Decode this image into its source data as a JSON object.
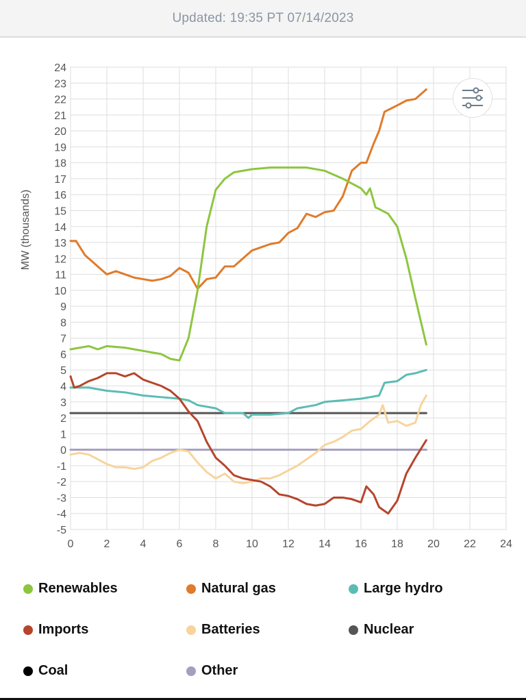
{
  "header": {
    "updated": "Updated: 19:35 PT 07/14/2023"
  },
  "filter_button": {
    "icon": "sliders-icon"
  },
  "chart_data": {
    "type": "line",
    "title": "",
    "xlabel": "",
    "ylabel": "MW (thousands)",
    "xlim": [
      0,
      24
    ],
    "ylim": [
      -5,
      24
    ],
    "x_ticks": [
      "0",
      "2",
      "4",
      "6",
      "8",
      "10",
      "12",
      "14",
      "16",
      "18",
      "20",
      "22",
      "24"
    ],
    "y_ticks": [
      "-5",
      "-4",
      "-3",
      "-2",
      "-1",
      "0",
      "1",
      "2",
      "3",
      "4",
      "5",
      "6",
      "7",
      "8",
      "9",
      "10",
      "11",
      "12",
      "13",
      "14",
      "15",
      "16",
      "17",
      "18",
      "19",
      "20",
      "21",
      "22",
      "23",
      "24"
    ],
    "grid": true,
    "legend_position": "bottom",
    "series": [
      {
        "name": "Renewables",
        "color": "#8cc63f",
        "points": [
          [
            0,
            6.3
          ],
          [
            1,
            6.5
          ],
          [
            1.5,
            6.3
          ],
          [
            2,
            6.5
          ],
          [
            3,
            6.4
          ],
          [
            4,
            6.2
          ],
          [
            5,
            6.0
          ],
          [
            5.5,
            5.7
          ],
          [
            6,
            5.6
          ],
          [
            6.5,
            7
          ],
          [
            7,
            10
          ],
          [
            7.5,
            14
          ],
          [
            8,
            16.3
          ],
          [
            8.5,
            17
          ],
          [
            9,
            17.4
          ],
          [
            10,
            17.6
          ],
          [
            11,
            17.7
          ],
          [
            12,
            17.7
          ],
          [
            13,
            17.7
          ],
          [
            14,
            17.5
          ],
          [
            15,
            17.0
          ],
          [
            15.5,
            16.7
          ],
          [
            16,
            16.4
          ],
          [
            16.3,
            16.0
          ],
          [
            16.5,
            16.4
          ],
          [
            16.8,
            15.2
          ],
          [
            17,
            15.1
          ],
          [
            17.5,
            14.8
          ],
          [
            18,
            14.0
          ],
          [
            18.5,
            12.0
          ],
          [
            19,
            9.5
          ],
          [
            19.6,
            6.6
          ]
        ]
      },
      {
        "name": "Natural gas",
        "color": "#e07b2a",
        "points": [
          [
            0,
            13.1
          ],
          [
            0.3,
            13.1
          ],
          [
            0.8,
            12.2
          ],
          [
            1.5,
            11.5
          ],
          [
            2,
            11.0
          ],
          [
            2.5,
            11.2
          ],
          [
            3,
            11.0
          ],
          [
            3.5,
            10.8
          ],
          [
            4,
            10.7
          ],
          [
            4.5,
            10.6
          ],
          [
            5,
            10.7
          ],
          [
            5.5,
            10.9
          ],
          [
            6,
            11.4
          ],
          [
            6.5,
            11.1
          ],
          [
            7,
            10.1
          ],
          [
            7.5,
            10.7
          ],
          [
            8,
            10.8
          ],
          [
            8.5,
            11.5
          ],
          [
            9,
            11.5
          ],
          [
            9.5,
            12.0
          ],
          [
            10,
            12.5
          ],
          [
            11,
            12.9
          ],
          [
            11.5,
            13.0
          ],
          [
            12,
            13.6
          ],
          [
            12.5,
            13.9
          ],
          [
            13,
            14.8
          ],
          [
            13.5,
            14.6
          ],
          [
            14,
            14.9
          ],
          [
            14.5,
            15.0
          ],
          [
            15,
            15.9
          ],
          [
            15.5,
            17.5
          ],
          [
            16,
            18.0
          ],
          [
            16.3,
            18.0
          ],
          [
            16.7,
            19.2
          ],
          [
            17,
            20
          ],
          [
            17.3,
            21.2
          ],
          [
            18,
            21.6
          ],
          [
            18.5,
            21.9
          ],
          [
            19,
            22.0
          ],
          [
            19.6,
            22.6
          ]
        ]
      },
      {
        "name": "Large hydro",
        "color": "#5bbcb4",
        "points": [
          [
            0,
            3.9
          ],
          [
            1,
            3.9
          ],
          [
            2,
            3.7
          ],
          [
            3,
            3.6
          ],
          [
            4,
            3.4
          ],
          [
            5,
            3.3
          ],
          [
            6,
            3.2
          ],
          [
            6.5,
            3.1
          ],
          [
            7,
            2.8
          ],
          [
            8,
            2.6
          ],
          [
            8.5,
            2.3
          ],
          [
            9,
            2.3
          ],
          [
            9.5,
            2.3
          ],
          [
            9.8,
            2.0
          ],
          [
            10,
            2.2
          ],
          [
            11,
            2.2
          ],
          [
            12,
            2.3
          ],
          [
            12.5,
            2.6
          ],
          [
            13.5,
            2.8
          ],
          [
            14,
            3.0
          ],
          [
            15,
            3.1
          ],
          [
            16,
            3.2
          ],
          [
            16.5,
            3.3
          ],
          [
            17,
            3.4
          ],
          [
            17.3,
            4.2
          ],
          [
            18,
            4.3
          ],
          [
            18.5,
            4.7
          ],
          [
            19,
            4.8
          ],
          [
            19.6,
            5.0
          ]
        ]
      },
      {
        "name": "Imports",
        "color": "#b5452c",
        "points": [
          [
            0,
            4.6
          ],
          [
            0.2,
            3.9
          ],
          [
            0.5,
            4.0
          ],
          [
            1,
            4.3
          ],
          [
            1.5,
            4.5
          ],
          [
            2,
            4.8
          ],
          [
            2.5,
            4.8
          ],
          [
            3,
            4.6
          ],
          [
            3.5,
            4.8
          ],
          [
            4,
            4.4
          ],
          [
            4.5,
            4.2
          ],
          [
            5,
            4.0
          ],
          [
            5.5,
            3.7
          ],
          [
            6,
            3.2
          ],
          [
            6.5,
            2.4
          ],
          [
            7,
            1.8
          ],
          [
            7.5,
            0.5
          ],
          [
            8,
            -0.5
          ],
          [
            8.5,
            -1.0
          ],
          [
            9,
            -1.6
          ],
          [
            9.5,
            -1.8
          ],
          [
            10,
            -1.9
          ],
          [
            10.5,
            -2.0
          ],
          [
            11,
            -2.3
          ],
          [
            11.5,
            -2.8
          ],
          [
            12,
            -2.9
          ],
          [
            12.5,
            -3.1
          ],
          [
            13,
            -3.4
          ],
          [
            13.5,
            -3.5
          ],
          [
            14,
            -3.4
          ],
          [
            14.5,
            -3.0
          ],
          [
            15,
            -3.0
          ],
          [
            15.5,
            -3.1
          ],
          [
            16,
            -3.3
          ],
          [
            16.3,
            -2.3
          ],
          [
            16.7,
            -2.8
          ],
          [
            17,
            -3.6
          ],
          [
            17.5,
            -4.0
          ],
          [
            18,
            -3.2
          ],
          [
            18.5,
            -1.5
          ],
          [
            19,
            -0.5
          ],
          [
            19.6,
            0.6
          ]
        ]
      },
      {
        "name": "Batteries",
        "color": "#f7d49c",
        "points": [
          [
            0,
            -0.3
          ],
          [
            0.5,
            -0.2
          ],
          [
            1,
            -0.3
          ],
          [
            1.5,
            -0.6
          ],
          [
            2,
            -0.9
          ],
          [
            2.5,
            -1.1
          ],
          [
            3,
            -1.1
          ],
          [
            3.5,
            -1.2
          ],
          [
            4,
            -1.1
          ],
          [
            4.5,
            -0.7
          ],
          [
            5,
            -0.5
          ],
          [
            5.5,
            -0.2
          ],
          [
            6,
            0
          ],
          [
            6.5,
            -0.1
          ],
          [
            7,
            -0.8
          ],
          [
            7.5,
            -1.4
          ],
          [
            8,
            -1.8
          ],
          [
            8.5,
            -1.5
          ],
          [
            9,
            -2.0
          ],
          [
            9.5,
            -2.1
          ],
          [
            10,
            -2.0
          ],
          [
            10.5,
            -1.8
          ],
          [
            11,
            -1.8
          ],
          [
            11.5,
            -1.6
          ],
          [
            12,
            -1.3
          ],
          [
            12.5,
            -1.0
          ],
          [
            13,
            -0.6
          ],
          [
            13.5,
            -0.2
          ],
          [
            14,
            0.3
          ],
          [
            14.5,
            0.5
          ],
          [
            15,
            0.8
          ],
          [
            15.5,
            1.2
          ],
          [
            16,
            1.3
          ],
          [
            16.5,
            1.8
          ],
          [
            17,
            2.2
          ],
          [
            17.2,
            2.8
          ],
          [
            17.5,
            1.7
          ],
          [
            18,
            1.8
          ],
          [
            18.5,
            1.5
          ],
          [
            19,
            1.7
          ],
          [
            19.3,
            2.8
          ],
          [
            19.6,
            3.4
          ]
        ]
      },
      {
        "name": "Nuclear",
        "color": "#555555",
        "points": [
          [
            0,
            2.3
          ],
          [
            19.6,
            2.3
          ]
        ]
      },
      {
        "name": "Coal",
        "color": "#000000",
        "points": []
      },
      {
        "name": "Other",
        "color": "#a39fc0",
        "points": [
          [
            0,
            0
          ],
          [
            19.6,
            0
          ]
        ]
      }
    ]
  }
}
